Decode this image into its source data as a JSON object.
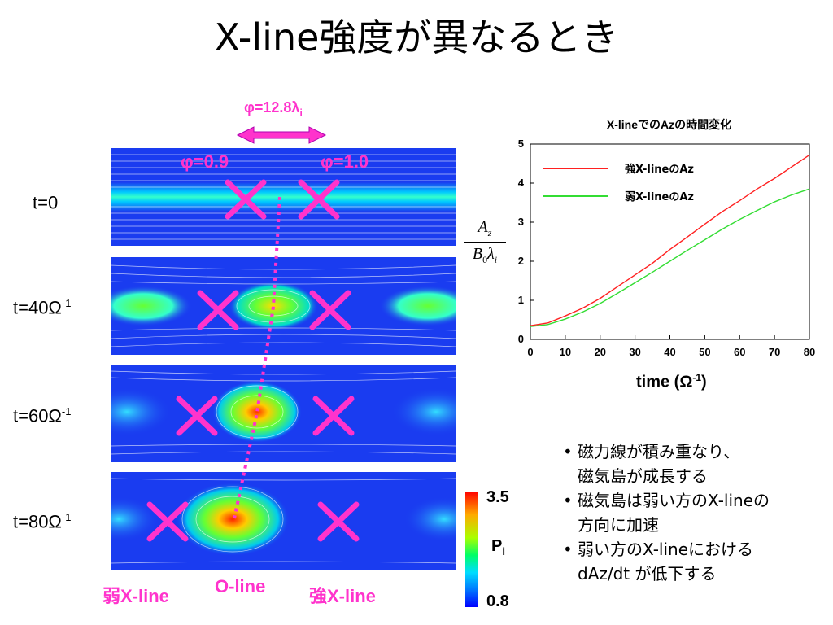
{
  "title": "X-line強度が異なるとき",
  "top_label": "φ=12.8λ",
  "top_label_sub": "i",
  "phi_left": "φ=0.9",
  "phi_right": "φ=1.0",
  "times": [
    {
      "main": "t=0",
      "sup": ""
    },
    {
      "main": "t=40Ω",
      "sup": "-1"
    },
    {
      "main": "t=60Ω",
      "sup": "-1"
    },
    {
      "main": "t=80Ω",
      "sup": "-1"
    }
  ],
  "bottom_labels": {
    "weak": "弱X-line",
    "oline": "O-line",
    "strong": "強X-line"
  },
  "colorbar": {
    "max": "3.5",
    "min": "0.8",
    "label": "P",
    "label_sub": "i"
  },
  "ylabel": {
    "num": "A",
    "num_sub": "z",
    "den": "B",
    "den_sub": "0",
    "den2": "λ",
    "den2_sub": "i"
  },
  "bullets": [
    [
      "磁力線が積み重なり、",
      "磁気島が成長する"
    ],
    [
      "磁気島は弱い方のX-lineの",
      "方向に加速"
    ],
    [
      "弱い方のX-lineにおける",
      "dAz/dt が低下する"
    ]
  ],
  "colors": {
    "magenta": "#ff33cc",
    "strong_line": "#ff2020",
    "weak_line": "#33dd33",
    "plasma_bg": "#1a3cf0"
  },
  "chart_data": {
    "type": "line",
    "title": "X-lineでのAzの時間変化",
    "xlabel": "time (Ω",
    "xlabel_sup": "-1",
    "xlabel_end": ")",
    "xlim": [
      0,
      80
    ],
    "ylim": [
      0,
      5
    ],
    "xticks": [
      "0",
      "10",
      "20",
      "30",
      "40",
      "50",
      "60",
      "70",
      "80"
    ],
    "yticks": [
      "0",
      "1",
      "2",
      "3",
      "4",
      "5"
    ],
    "legend_position": "top-left",
    "series": [
      {
        "name": "強X-lineのAz",
        "color": "#ff2020",
        "x": [
          0,
          5,
          10,
          15,
          20,
          25,
          30,
          35,
          40,
          45,
          50,
          55,
          60,
          65,
          70,
          75,
          80
        ],
        "y": [
          0.35,
          0.42,
          0.6,
          0.8,
          1.05,
          1.35,
          1.65,
          1.95,
          2.3,
          2.62,
          2.95,
          3.27,
          3.55,
          3.85,
          4.12,
          4.42,
          4.72
        ]
      },
      {
        "name": "弱X-lineのAz",
        "color": "#33dd33",
        "x": [
          0,
          5,
          10,
          15,
          20,
          25,
          30,
          35,
          40,
          45,
          50,
          55,
          60,
          65,
          70,
          75,
          80
        ],
        "y": [
          0.33,
          0.38,
          0.52,
          0.7,
          0.92,
          1.18,
          1.45,
          1.72,
          2.0,
          2.28,
          2.55,
          2.82,
          3.07,
          3.3,
          3.52,
          3.7,
          3.85
        ]
      }
    ]
  }
}
